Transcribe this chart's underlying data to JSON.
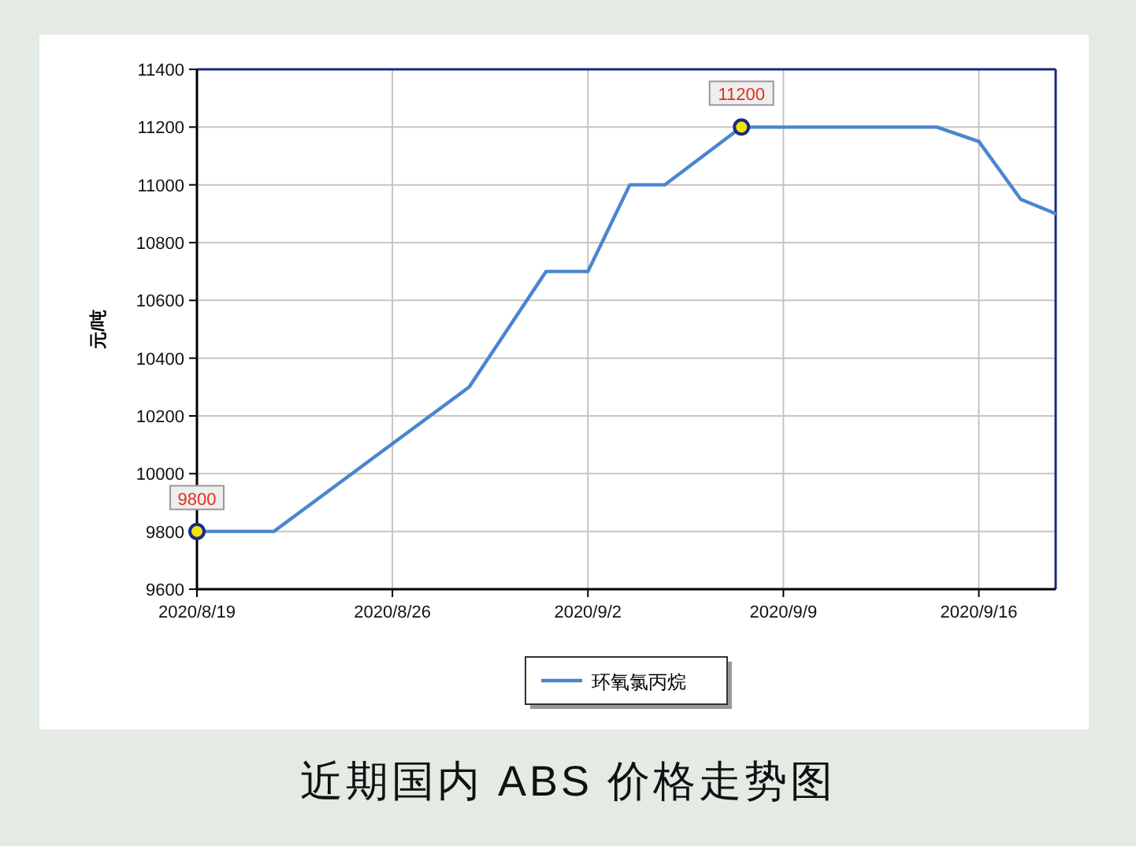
{
  "chart_data": {
    "type": "line",
    "title": "近期国内 ABS 价格走势图",
    "ylabel": "元/吨",
    "x": [
      "2020-08-19",
      "2020-08-21T18:00",
      "2020-08-28T18:00",
      "2020-08-31T12:00",
      "2020-09-02",
      "2020-09-03T12:00",
      "2020-09-04T18:00",
      "2020-09-07T12:00",
      "2020-09-14T12:00",
      "2020-09-16",
      "2020-09-17T12:00",
      "2020-09-18T18:00"
    ],
    "series": [
      {
        "name": "环氧氯丙烷",
        "color": "#4a86cf",
        "values": [
          9800,
          9800,
          10300,
          10700,
          10700,
          11000,
          11000,
          11200,
          11200,
          11150,
          10950,
          10900
        ]
      }
    ],
    "annotations": [
      {
        "text": "9800",
        "x": "2020-08-19",
        "y": 9800
      },
      {
        "text": "11200",
        "x": "2020-09-07T12:00",
        "y": 11200
      }
    ],
    "xlim": [
      "2020-08-19",
      "2020-09-18T18:00"
    ],
    "xticks": [
      {
        "value": "2020-08-19",
        "label": "2020/8/19"
      },
      {
        "value": "2020-08-26",
        "label": "2020/8/26"
      },
      {
        "value": "2020-09-02",
        "label": "2020/9/2"
      },
      {
        "value": "2020-09-09",
        "label": "2020/9/9"
      },
      {
        "value": "2020-09-16",
        "label": "2020/9/16"
      }
    ],
    "ylim": [
      9600,
      11400
    ],
    "yticks": [
      9600,
      9800,
      10000,
      10200,
      10400,
      10600,
      10800,
      11000,
      11200,
      11400
    ],
    "grid": true,
    "legend": "bottom",
    "marker": "none",
    "line_style": "solid"
  }
}
